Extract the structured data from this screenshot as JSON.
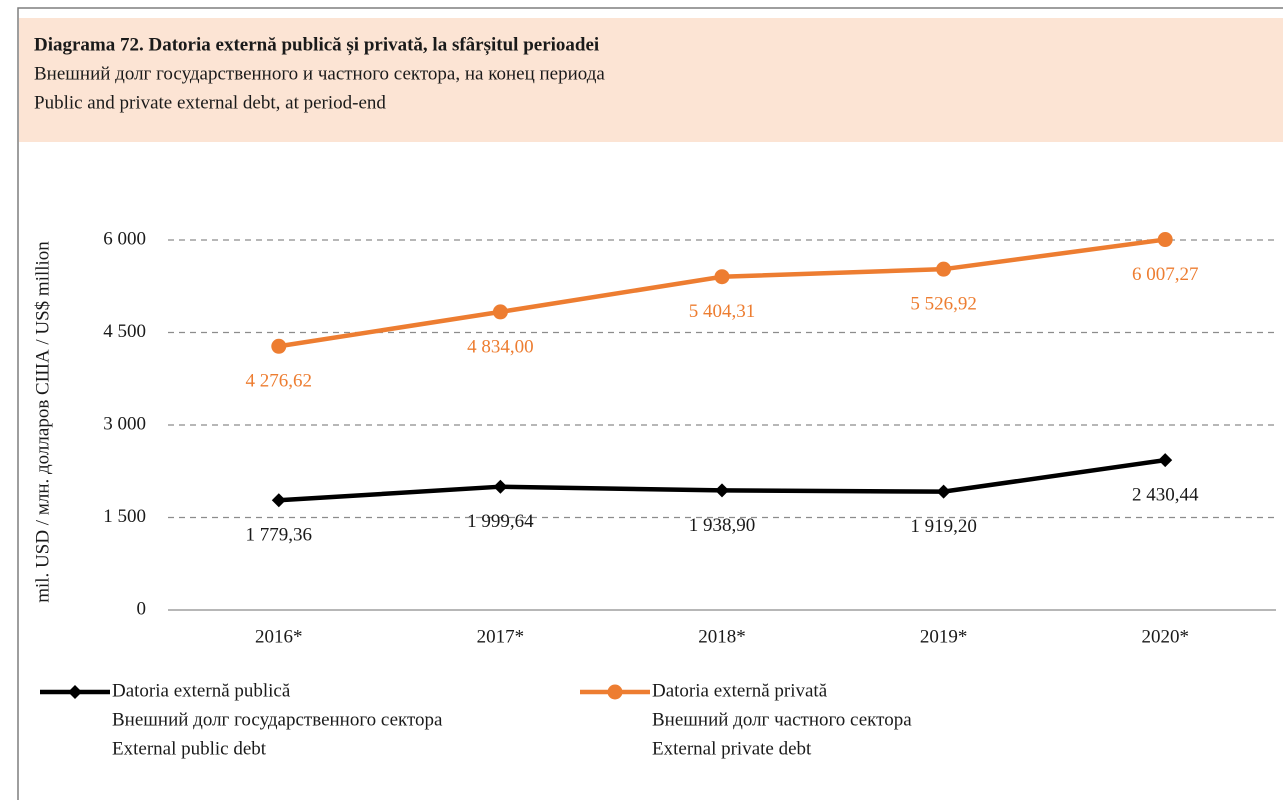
{
  "chart_data": {
    "type": "line",
    "title": "Diagrama 72. Datoria externă publică și privată, la sfârșitul perioadei",
    "subtitle": "Внешний долг государственного и частного сектора, на конец периода",
    "subtitle2": "Public and private external debt, at period-end",
    "y_label": "mil. USD / млн. долларов США /  US$ million",
    "categories": [
      "2016*",
      "2017*",
      "2018*",
      "2019*",
      "2020*"
    ],
    "series": [
      {
        "name": "Datoria externă publică",
        "legend_lines": [
          "Внешний долг государственного сектора",
          "External public debt"
        ],
        "color": "#000000",
        "marker": "diamond",
        "values": [
          1779.36,
          1999.64,
          1938.9,
          1919.2,
          2430.44
        ],
        "value_labels": [
          "1 779,36",
          "1 999,64",
          "1 938,90",
          "1 919,20",
          "2 430,44"
        ]
      },
      {
        "name": "Datoria externă privată",
        "legend_lines": [
          "Внешний долг частного сектора",
          "External private debt"
        ],
        "color": "#ed7d31",
        "marker": "circle",
        "values": [
          4276.62,
          4834.0,
          5404.31,
          5526.92,
          6007.27
        ],
        "value_labels": [
          "4 276,62",
          "4 834,00",
          "5 404,31",
          "5 526,92",
          "6 007,27"
        ]
      }
    ],
    "ylim": [
      0,
      6000
    ],
    "yticks": [
      0,
      {
        "value": 1500,
        "label": "1 500"
      },
      {
        "value": 3000,
        "label": "3 000"
      },
      {
        "value": 4500,
        "label": "4 500"
      },
      {
        "value": 6000,
        "label": "6 000"
      }
    ],
    "grid": true
  }
}
